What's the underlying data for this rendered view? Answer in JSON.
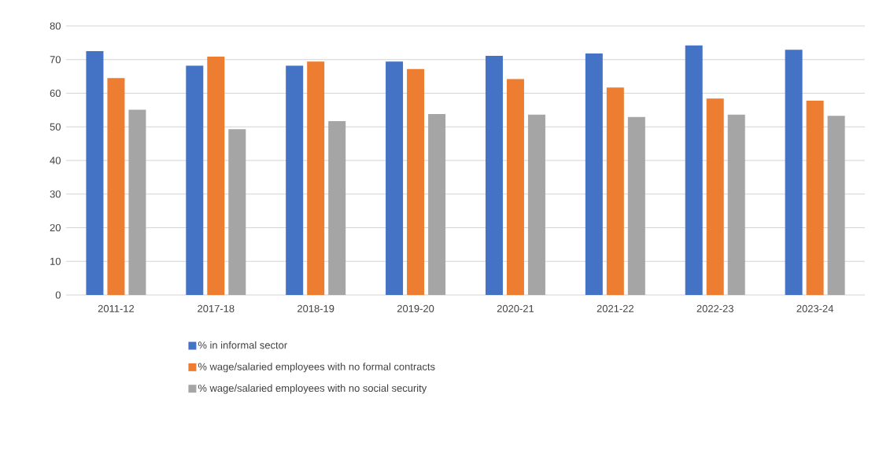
{
  "chart_data": {
    "type": "bar",
    "categories": [
      "2011-12",
      "2017-18",
      "2018-19",
      "2019-20",
      "2020-21",
      "2021-22",
      "2022-23",
      "2023-24"
    ],
    "series": [
      {
        "name": "% in informal sector",
        "color": "#4472c4",
        "values": [
          72.5,
          68.2,
          68.2,
          69.4,
          71.1,
          71.8,
          74.2,
          72.9
        ]
      },
      {
        "name": "% wage/salaried employees with no formal contracts",
        "color": "#ed7d31",
        "values": [
          64.5,
          70.9,
          69.4,
          67.2,
          64.2,
          61.7,
          58.4,
          57.8
        ]
      },
      {
        "name": "% wage/salaried employees with no social security",
        "color": "#a5a5a5",
        "values": [
          55.1,
          49.3,
          51.7,
          53.8,
          53.6,
          52.9,
          53.6,
          53.3
        ]
      }
    ],
    "ylim": [
      0,
      80
    ],
    "yticks": [
      0,
      10,
      20,
      30,
      40,
      50,
      60,
      70,
      80
    ],
    "grid": "y",
    "legend": "bottom"
  }
}
